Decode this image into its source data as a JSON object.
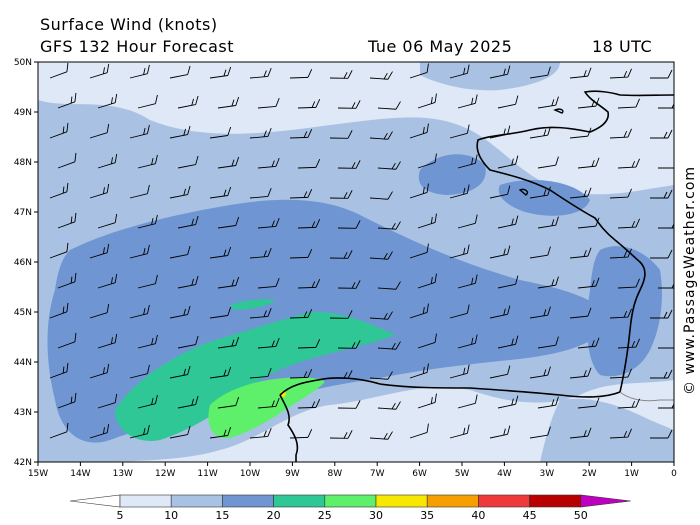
{
  "header": {
    "title": "Surface Wind (knots)",
    "subtitle": "GFS 132 Hour Forecast",
    "date": "Tue 06 May 2025",
    "time": "18 UTC"
  },
  "credit": "© www.PassageWeather.com",
  "map": {
    "lat_labels": [
      "50N",
      "49N",
      "48N",
      "47N",
      "46N",
      "45N",
      "44N",
      "43N",
      "42N"
    ],
    "lon_labels": [
      "15W",
      "14W",
      "13W",
      "12W",
      "11W",
      "10W",
      "9W",
      "8W",
      "7W",
      "6W",
      "5W",
      "4W",
      "3W",
      "2W",
      "1W",
      "0"
    ]
  },
  "legend": {
    "labels": [
      "5",
      "10",
      "15",
      "20",
      "25",
      "30",
      "35",
      "40",
      "45",
      "50"
    ],
    "colors": [
      "#dfe8f6",
      "#a9c2e3",
      "#6f96d2",
      "#2fc795",
      "#5ef06a",
      "#f6e800",
      "#f5a000",
      "#ee3a3a",
      "#b80000",
      "#c000c0"
    ]
  },
  "colors": {
    "c0": "#edf1fa",
    "c5": "#dfe8f6",
    "c10": "#a9c2e3",
    "c15": "#6f96d2",
    "c20": "#2fc795",
    "c25": "#5ef06a",
    "c30": "#f6e800"
  }
}
